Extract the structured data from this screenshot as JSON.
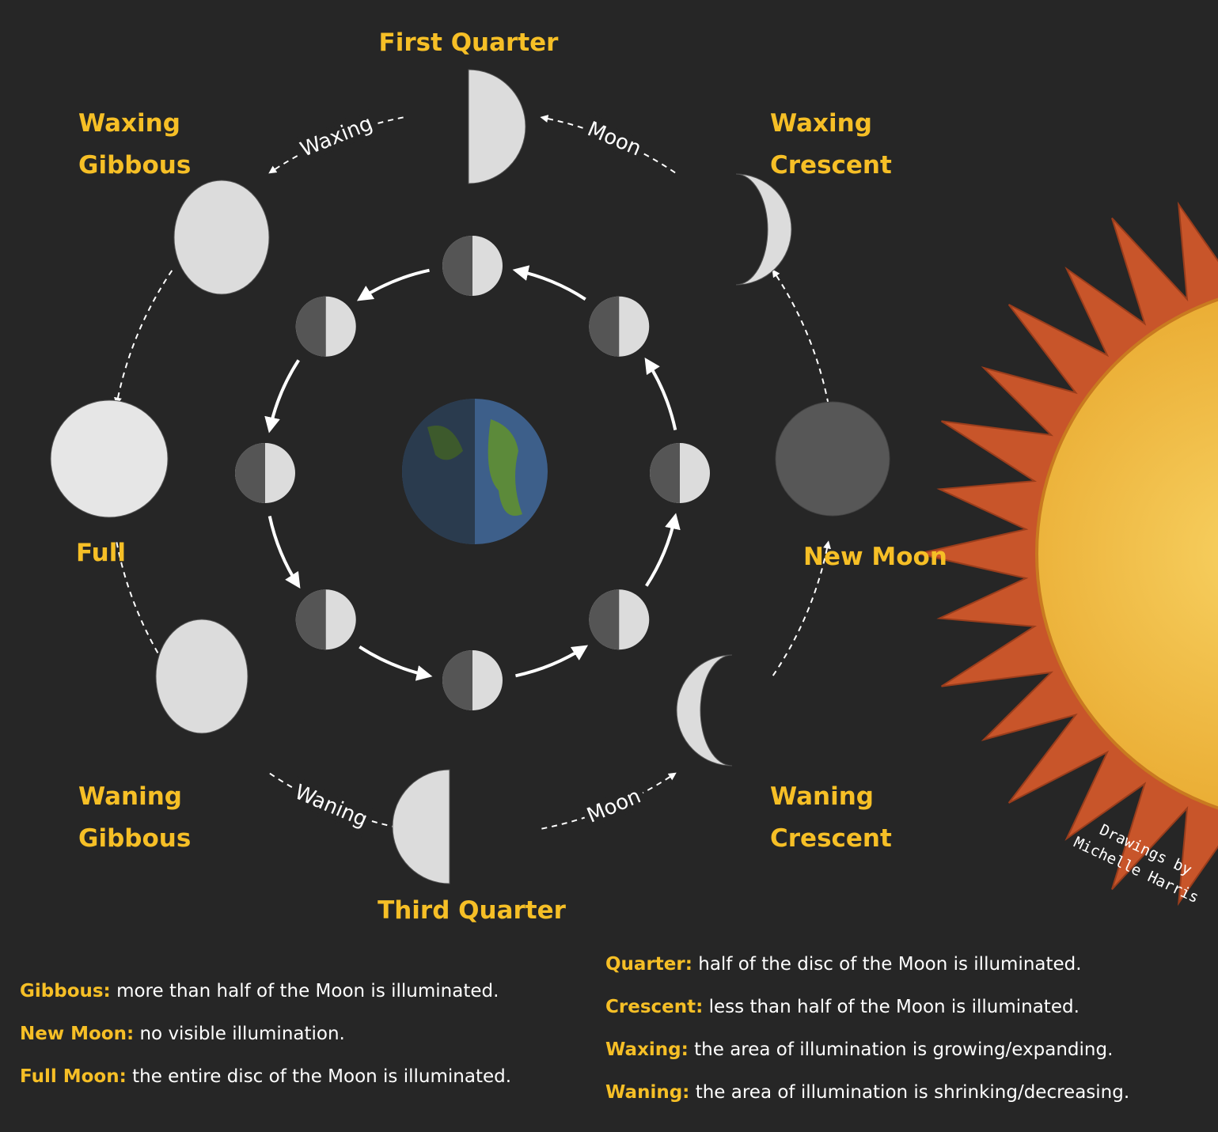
{
  "phases": [
    {
      "lines": [
        "First Quarter"
      ]
    },
    {
      "lines": [
        "Waxing",
        "Crescent"
      ]
    },
    {
      "lines": [
        "New Moon"
      ]
    },
    {
      "lines": [
        "Waning",
        "Crescent"
      ]
    },
    {
      "lines": [
        "Third Quarter"
      ]
    },
    {
      "lines": [
        "Waning",
        "Gibbous"
      ]
    },
    {
      "lines": [
        "Full"
      ]
    },
    {
      "lines": [
        "Waxing",
        "Gibbous"
      ]
    }
  ],
  "orbit_labels": [
    "Waxing",
    "Moon",
    "Waning",
    "Moon"
  ],
  "credit": [
    "Drawings by",
    "Michelle Harris"
  ],
  "definitions_left": [
    {
      "term": "Gibbous:",
      "text": "more than half of the Moon is illuminated."
    },
    {
      "term": "New Moon:",
      "text": "no visible illumination."
    },
    {
      "term": "Full Moon:",
      "text": "the entire disc of the Moon is illuminated."
    }
  ],
  "definitions_right": [
    {
      "term": "Quarter:",
      "text": "half of the disc of the Moon is illuminated."
    },
    {
      "term": "Crescent:",
      "text": "less than half of the Moon is illuminated."
    },
    {
      "term": "Waxing:",
      "text": "the area of illumination is growing/expanding."
    },
    {
      "term": "Waning:",
      "text": "the area of illumination is shrinking/decreasing."
    }
  ]
}
